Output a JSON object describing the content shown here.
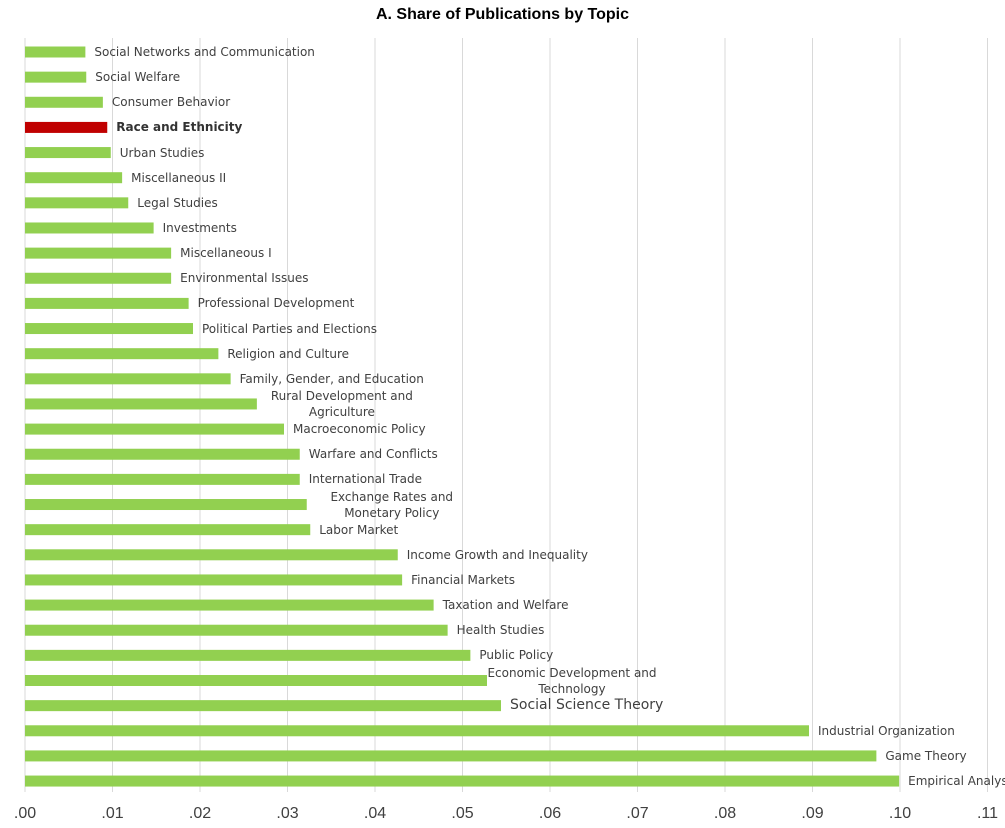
{
  "chart_data": {
    "type": "barh",
    "title": "A. Share of Publications by Topic",
    "categories": [
      "Social Networks and Communication",
      "Social Welfare",
      "Consumer Behavior",
      "Race and Ethnicity",
      "Urban Studies",
      "Miscellaneous II",
      "Legal Studies",
      "Investments",
      "Miscellaneous I",
      "Environmental Issues",
      "Professional Development",
      "Political Parties and Elections",
      "Religion and Culture",
      "Family, Gender, and Education",
      "Rural Development and Agriculture",
      "Macroeconomic Policy",
      "Warfare and Conflicts",
      "International Trade",
      "Exchange Rates and Monetary Policy",
      "Labor Market",
      "Income Growth and Inequality",
      "Financial Markets",
      "Taxation and Welfare",
      "Health Studies",
      "Public Policy",
      "Economic Development and Technology",
      "Social Science Theory",
      "Industrial Organization",
      "Game Theory",
      "Empirical Analysis"
    ],
    "values": [
      0.0069,
      0.007,
      0.0089,
      0.0094,
      0.0098,
      0.0111,
      0.0118,
      0.0147,
      0.0167,
      0.0167,
      0.0187,
      0.0192,
      0.0221,
      0.0235,
      0.0265,
      0.0296,
      0.0314,
      0.0314,
      0.0322,
      0.0326,
      0.0426,
      0.0431,
      0.0467,
      0.0483,
      0.0509,
      0.0528,
      0.0544,
      0.0896,
      0.0973,
      0.0999
    ],
    "colors": [
      "#92d050",
      "#92d050",
      "#92d050",
      "#c00000",
      "#92d050",
      "#92d050",
      "#92d050",
      "#92d050",
      "#92d050",
      "#92d050",
      "#92d050",
      "#92d050",
      "#92d050",
      "#92d050",
      "#92d050",
      "#92d050",
      "#92d050",
      "#92d050",
      "#92d050",
      "#92d050",
      "#92d050",
      "#92d050",
      "#92d050",
      "#92d050",
      "#92d050",
      "#92d050",
      "#92d050",
      "#92d050",
      "#92d050",
      "#92d050"
    ],
    "xlim": [
      0,
      0.11
    ],
    "xticks": [
      {
        "value": 0,
        "label": ".00"
      },
      {
        "value": 0.01,
        "label": ".01"
      },
      {
        "value": 0.02,
        "label": ".02"
      },
      {
        "value": 0.03,
        "label": ".03"
      },
      {
        "value": 0.04,
        "label": ".04"
      },
      {
        "value": 0.05,
        "label": ".05"
      },
      {
        "value": 0.06,
        "label": ".06"
      },
      {
        "value": 0.07,
        "label": ".07"
      },
      {
        "value": 0.08,
        "label": ".08"
      },
      {
        "value": 0.09,
        "label": ".09"
      },
      {
        "value": 0.1,
        "label": ".10"
      },
      {
        "value": 0.11,
        "label": ".11"
      }
    ],
    "grid": true
  }
}
